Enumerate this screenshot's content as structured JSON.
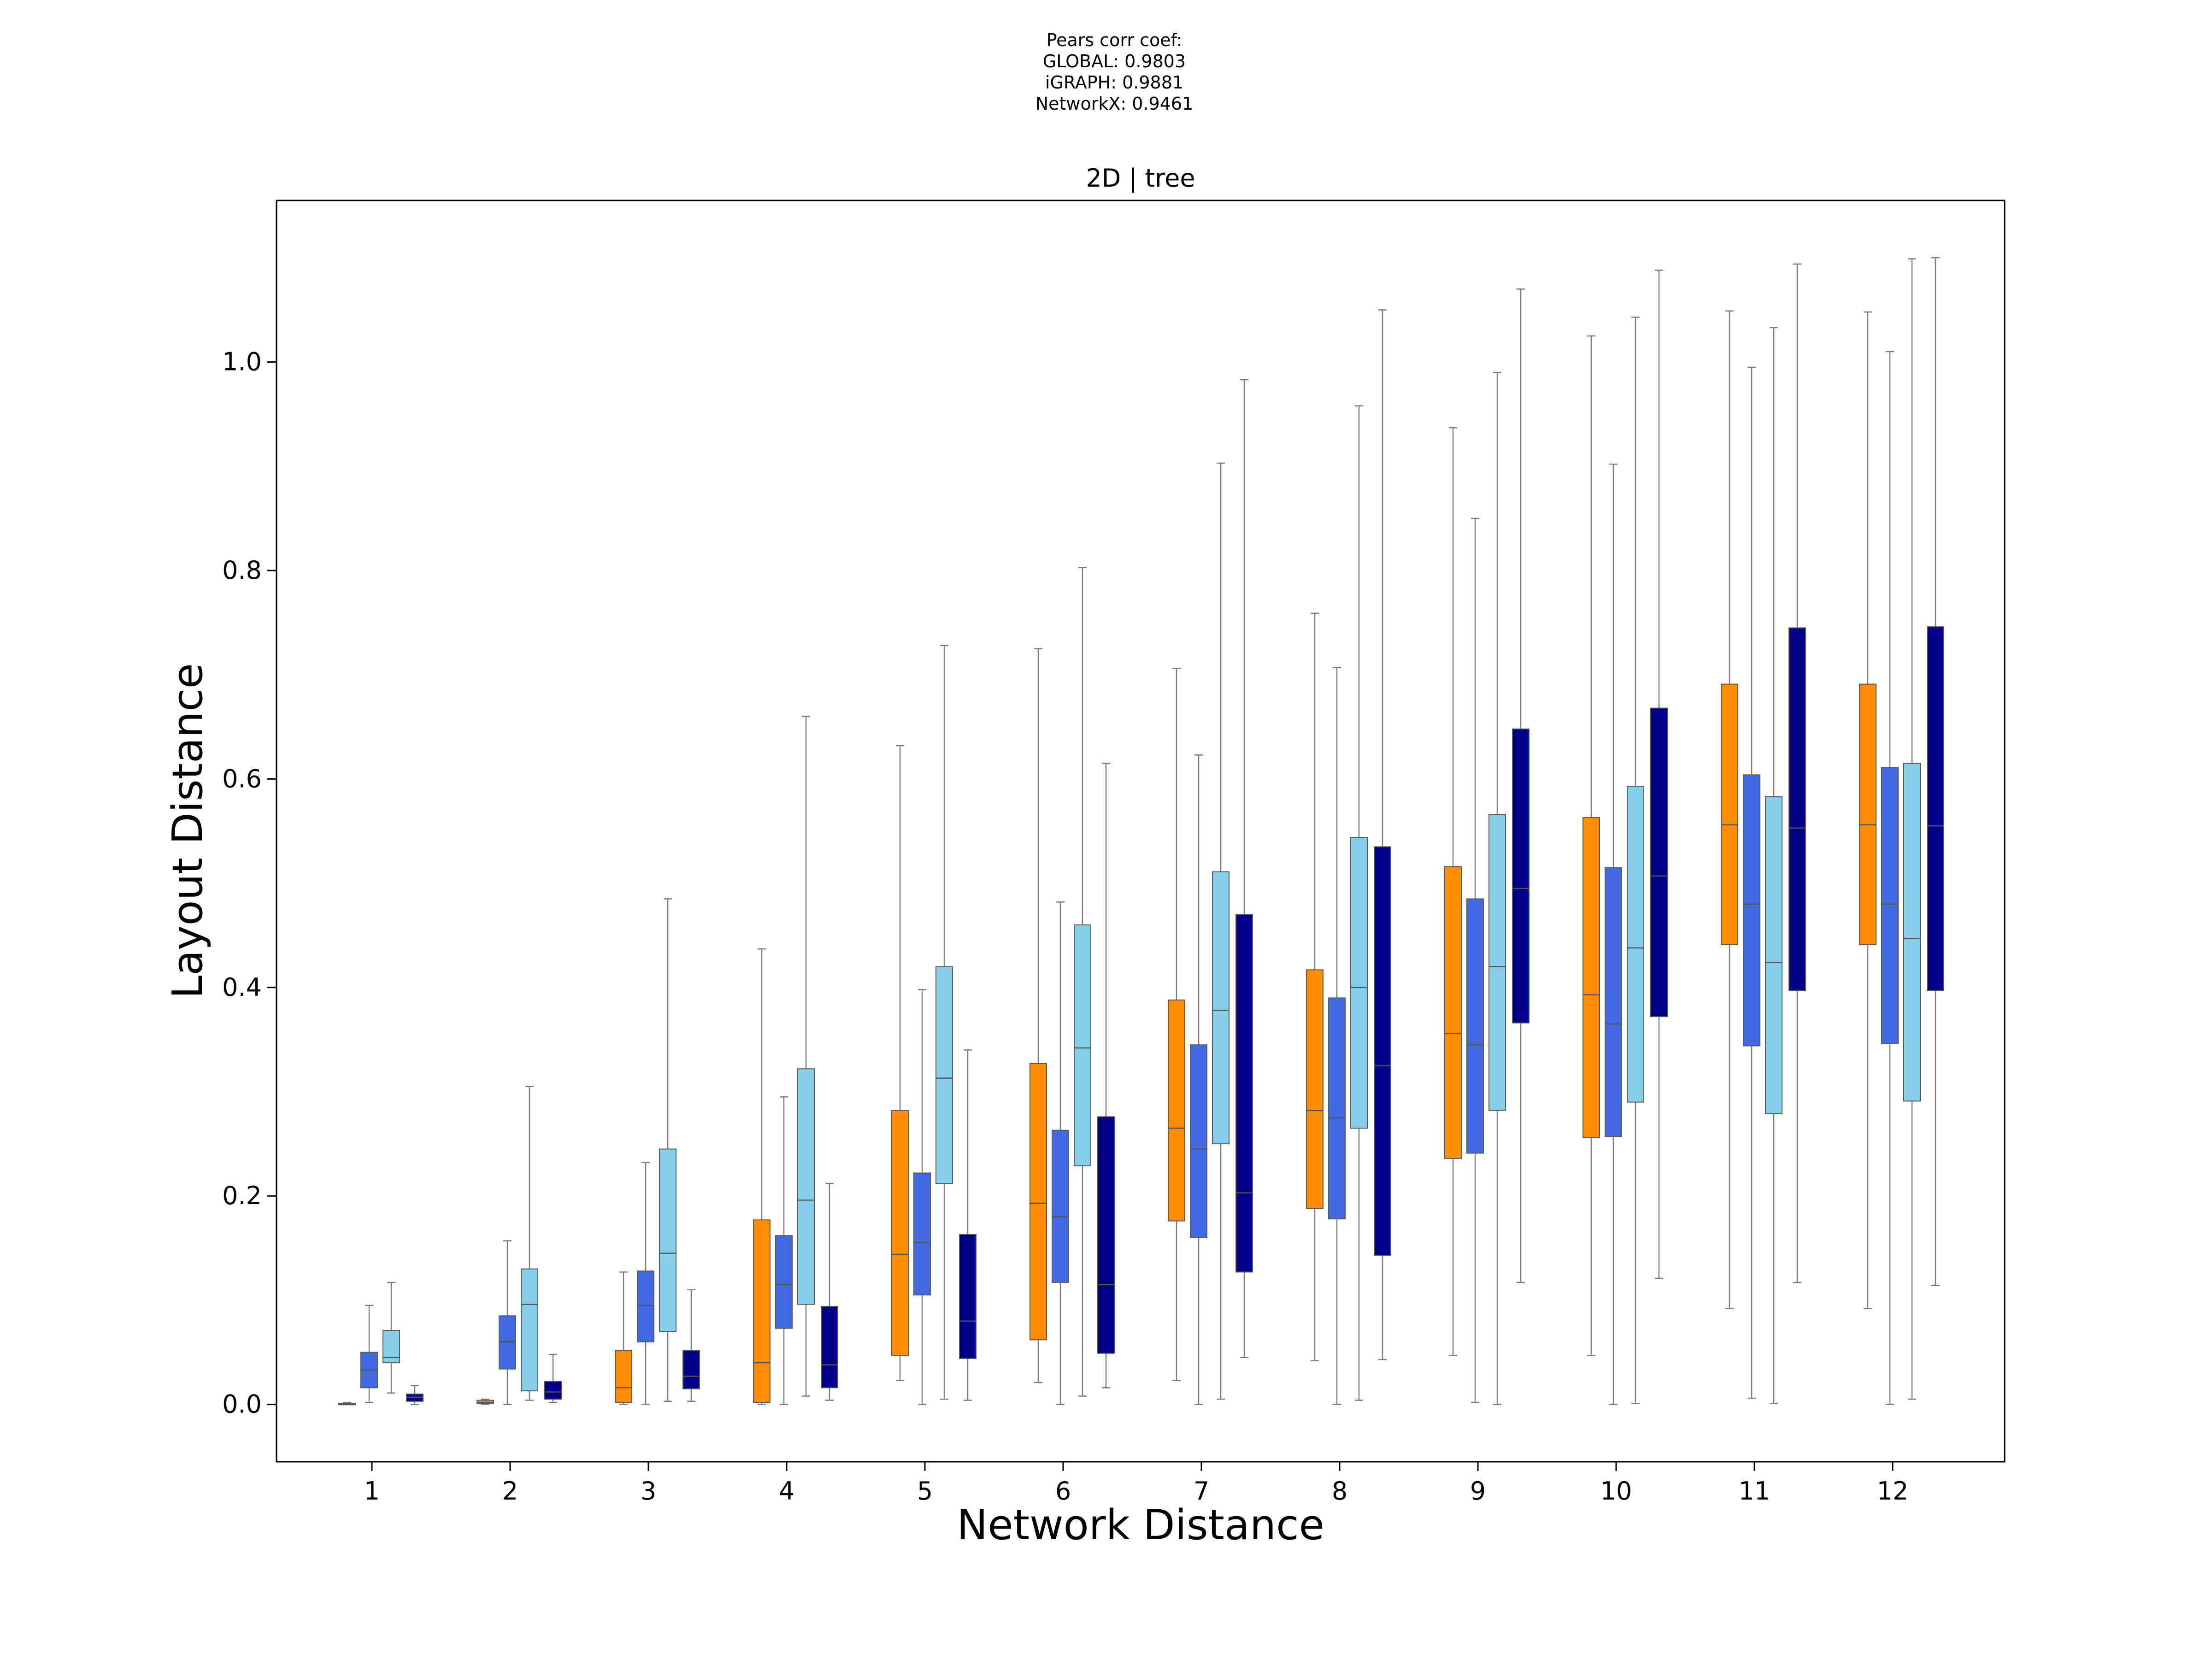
{
  "chart_data": {
    "type": "boxplot",
    "title": "2D | tree",
    "annotation_lines": [
      "Pears corr coef:",
      "GLOBAL: 0.9803",
      "iGRAPH: 0.9881",
      "NetworkX: 0.9461"
    ],
    "xlabel": "Network Distance",
    "ylabel": "Layout Distance",
    "categories": [
      "1",
      "2",
      "3",
      "4",
      "5",
      "6",
      "7",
      "8",
      "9",
      "10",
      "11",
      "12"
    ],
    "ylim": [
      -0.055,
      1.155
    ],
    "yticks": [
      0.0,
      0.2,
      0.4,
      0.6,
      0.8,
      1.0
    ],
    "ytick_labels": [
      "0.0",
      "0.2",
      "0.4",
      "0.6",
      "0.8",
      "1.0"
    ],
    "legend": "none",
    "grid": false,
    "series": [
      {
        "color": "#ff8c00",
        "boxes": [
          {
            "whislo": 0.0,
            "q1": 0.0,
            "med": 0.0,
            "q3": 0.001,
            "whishi": 0.002
          },
          {
            "whislo": 0.0,
            "q1": 0.001,
            "med": 0.002,
            "q3": 0.004,
            "whishi": 0.005
          },
          {
            "whislo": 0.0,
            "q1": 0.002,
            "med": 0.016,
            "q3": 0.052,
            "whishi": 0.127
          },
          {
            "whislo": 0.0,
            "q1": 0.002,
            "med": 0.04,
            "q3": 0.177,
            "whishi": 0.437
          },
          {
            "whislo": 0.023,
            "q1": 0.047,
            "med": 0.144,
            "q3": 0.282,
            "whishi": 0.632
          },
          {
            "whislo": 0.021,
            "q1": 0.062,
            "med": 0.193,
            "q3": 0.327,
            "whishi": 0.725
          },
          {
            "whislo": 0.023,
            "q1": 0.176,
            "med": 0.265,
            "q3": 0.388,
            "whishi": 0.706
          },
          {
            "whislo": 0.042,
            "q1": 0.188,
            "med": 0.282,
            "q3": 0.417,
            "whishi": 0.759
          },
          {
            "whislo": 0.047,
            "q1": 0.236,
            "med": 0.356,
            "q3": 0.516,
            "whishi": 0.937
          },
          {
            "whislo": 0.047,
            "q1": 0.256,
            "med": 0.393,
            "q3": 0.563,
            "whishi": 1.025
          },
          {
            "whislo": 0.092,
            "q1": 0.441,
            "med": 0.556,
            "q3": 0.691,
            "whishi": 1.049
          },
          {
            "whislo": 0.092,
            "q1": 0.441,
            "med": 0.556,
            "q3": 0.691,
            "whishi": 1.048
          }
        ]
      },
      {
        "color": "#4169e1",
        "boxes": [
          {
            "whislo": 0.002,
            "q1": 0.016,
            "med": 0.033,
            "q3": 0.05,
            "whishi": 0.095
          },
          {
            "whislo": 0.0,
            "q1": 0.034,
            "med": 0.06,
            "q3": 0.085,
            "whishi": 0.157
          },
          {
            "whislo": 0.0,
            "q1": 0.06,
            "med": 0.095,
            "q3": 0.128,
            "whishi": 0.232
          },
          {
            "whislo": 0.0,
            "q1": 0.073,
            "med": 0.115,
            "q3": 0.162,
            "whishi": 0.295
          },
          {
            "whislo": 0.0,
            "q1": 0.105,
            "med": 0.155,
            "q3": 0.222,
            "whishi": 0.398
          },
          {
            "whislo": 0.0,
            "q1": 0.117,
            "med": 0.18,
            "q3": 0.263,
            "whishi": 0.482
          },
          {
            "whislo": 0.0,
            "q1": 0.16,
            "med": 0.245,
            "q3": 0.345,
            "whishi": 0.623
          },
          {
            "whislo": 0.0,
            "q1": 0.178,
            "med": 0.275,
            "q3": 0.39,
            "whishi": 0.707
          },
          {
            "whislo": 0.002,
            "q1": 0.241,
            "med": 0.345,
            "q3": 0.485,
            "whishi": 0.85
          },
          {
            "whislo": 0.0,
            "q1": 0.257,
            "med": 0.365,
            "q3": 0.515,
            "whishi": 0.902
          },
          {
            "whislo": 0.006,
            "q1": 0.344,
            "med": 0.48,
            "q3": 0.604,
            "whishi": 0.995
          },
          {
            "whislo": 0.0,
            "q1": 0.346,
            "med": 0.48,
            "q3": 0.611,
            "whishi": 1.01
          }
        ]
      },
      {
        "color": "#87ceeb",
        "boxes": [
          {
            "whislo": 0.011,
            "q1": 0.04,
            "med": 0.045,
            "q3": 0.071,
            "whishi": 0.117
          },
          {
            "whislo": 0.004,
            "q1": 0.013,
            "med": 0.096,
            "q3": 0.13,
            "whishi": 0.305
          },
          {
            "whislo": 0.003,
            "q1": 0.07,
            "med": 0.145,
            "q3": 0.245,
            "whishi": 0.485
          },
          {
            "whislo": 0.008,
            "q1": 0.096,
            "med": 0.196,
            "q3": 0.322,
            "whishi": 0.66
          },
          {
            "whislo": 0.005,
            "q1": 0.212,
            "med": 0.313,
            "q3": 0.42,
            "whishi": 0.728
          },
          {
            "whislo": 0.008,
            "q1": 0.229,
            "med": 0.342,
            "q3": 0.46,
            "whishi": 0.803
          },
          {
            "whislo": 0.005,
            "q1": 0.25,
            "med": 0.378,
            "q3": 0.511,
            "whishi": 0.903
          },
          {
            "whislo": 0.004,
            "q1": 0.265,
            "med": 0.4,
            "q3": 0.544,
            "whishi": 0.958
          },
          {
            "whislo": 0.0,
            "q1": 0.282,
            "med": 0.42,
            "q3": 0.566,
            "whishi": 0.99
          },
          {
            "whislo": 0.001,
            "q1": 0.29,
            "med": 0.438,
            "q3": 0.593,
            "whishi": 1.043
          },
          {
            "whislo": 0.001,
            "q1": 0.279,
            "med": 0.424,
            "q3": 0.583,
            "whishi": 1.033
          },
          {
            "whislo": 0.005,
            "q1": 0.291,
            "med": 0.447,
            "q3": 0.615,
            "whishi": 1.099
          }
        ]
      },
      {
        "color": "#00008b",
        "boxes": [
          {
            "whislo": 0.0,
            "q1": 0.003,
            "med": 0.007,
            "q3": 0.01,
            "whishi": 0.018
          },
          {
            "whislo": 0.002,
            "q1": 0.005,
            "med": 0.012,
            "q3": 0.022,
            "whishi": 0.048
          },
          {
            "whislo": 0.003,
            "q1": 0.015,
            "med": 0.027,
            "q3": 0.052,
            "whishi": 0.11
          },
          {
            "whislo": 0.004,
            "q1": 0.016,
            "med": 0.038,
            "q3": 0.094,
            "whishi": 0.212
          },
          {
            "whislo": 0.004,
            "q1": 0.044,
            "med": 0.08,
            "q3": 0.163,
            "whishi": 0.34
          },
          {
            "whislo": 0.016,
            "q1": 0.049,
            "med": 0.115,
            "q3": 0.276,
            "whishi": 0.615
          },
          {
            "whislo": 0.045,
            "q1": 0.127,
            "med": 0.203,
            "q3": 0.47,
            "whishi": 0.983
          },
          {
            "whislo": 0.043,
            "q1": 0.143,
            "med": 0.325,
            "q3": 0.535,
            "whishi": 1.05
          },
          {
            "whislo": 0.117,
            "q1": 0.366,
            "med": 0.495,
            "q3": 0.648,
            "whishi": 1.07
          },
          {
            "whislo": 0.121,
            "q1": 0.372,
            "med": 0.507,
            "q3": 0.668,
            "whishi": 1.088
          },
          {
            "whislo": 0.117,
            "q1": 0.397,
            "med": 0.553,
            "q3": 0.745,
            "whishi": 1.094
          },
          {
            "whislo": 0.114,
            "q1": 0.397,
            "med": 0.555,
            "q3": 0.746,
            "whishi": 1.1
          }
        ]
      }
    ]
  }
}
